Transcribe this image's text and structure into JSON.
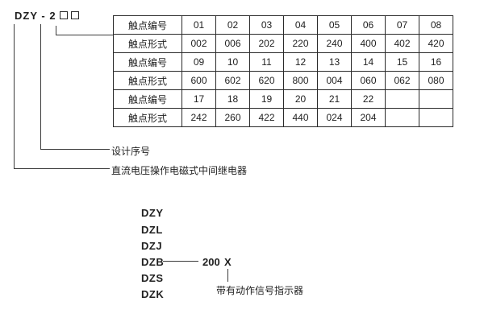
{
  "header": {
    "model_prefix": "DZY - 2"
  },
  "table": {
    "rows": [
      {
        "label": "触点编号",
        "values": [
          "01",
          "02",
          "03",
          "04",
          "05",
          "06",
          "07",
          "08"
        ]
      },
      {
        "label": "触点形式",
        "values": [
          "002",
          "006",
          "202",
          "220",
          "240",
          "400",
          "402",
          "420"
        ]
      },
      {
        "label": "触点编号",
        "values": [
          "09",
          "10",
          "11",
          "12",
          "13",
          "14",
          "15",
          "16"
        ]
      },
      {
        "label": "触点形式",
        "values": [
          "600",
          "602",
          "620",
          "800",
          "004",
          "060",
          "062",
          "080"
        ]
      },
      {
        "label": "触点编号",
        "values": [
          "17",
          "18",
          "19",
          "20",
          "21",
          "22",
          "",
          ""
        ]
      },
      {
        "label": "触点形式",
        "values": [
          "242",
          "260",
          "422",
          "440",
          "024",
          "204",
          "",
          ""
        ]
      }
    ]
  },
  "callouts": {
    "design_serial_label": "设计序号",
    "relay_description_label": "直流电压操作电磁式中间继电器"
  },
  "series": {
    "items": [
      "DZY",
      "DZL",
      "DZJ",
      "DZB",
      "DZS",
      "DZK"
    ],
    "dzb_number": "200",
    "dzb_placeholder": "X",
    "indicator_label": "带有动作信号指示器"
  },
  "colors": {
    "ink": "#1f1f1f",
    "line": "#3a3a3a"
  }
}
